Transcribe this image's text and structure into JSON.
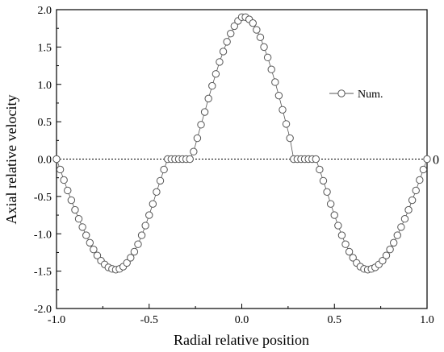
{
  "chart_data": {
    "type": "scatter",
    "xlabel": "Radial relative position",
    "ylabel": "Axial relative velocity",
    "xlim": [
      -1.0,
      1.0
    ],
    "ylim": [
      -2.0,
      2.0
    ],
    "x_ticks": [
      -1.0,
      -0.5,
      0.0,
      0.5,
      1.0
    ],
    "x_tick_labels": [
      "-1.0",
      "-0.5",
      "0.0",
      "0.5",
      "1.0"
    ],
    "y_ticks": [
      -2.0,
      -1.5,
      -1.0,
      -0.5,
      0.0,
      0.5,
      1.0,
      1.5,
      2.0
    ],
    "y_tick_labels": [
      "-2.0",
      "-1.5",
      "-1.0",
      "-0.5",
      "0.0",
      "0.5",
      "1.0",
      "1.5",
      "2.0"
    ],
    "grid": false,
    "legend_position": "right",
    "reference_line": {
      "y": 0,
      "style": "dotted",
      "label": "0"
    },
    "series": [
      {
        "name": "Num.",
        "marker": "open-circle",
        "line": "solid",
        "color": "#555555",
        "points": [
          [
            -1.0,
            0.0
          ],
          [
            -0.98,
            -0.14
          ],
          [
            -0.96,
            -0.28
          ],
          [
            -0.94,
            -0.42
          ],
          [
            -0.92,
            -0.55
          ],
          [
            -0.9,
            -0.68
          ],
          [
            -0.88,
            -0.8
          ],
          [
            -0.86,
            -0.91
          ],
          [
            -0.84,
            -1.02
          ],
          [
            -0.82,
            -1.12
          ],
          [
            -0.8,
            -1.21
          ],
          [
            -0.78,
            -1.29
          ],
          [
            -0.76,
            -1.36
          ],
          [
            -0.74,
            -1.41
          ],
          [
            -0.72,
            -1.45
          ],
          [
            -0.7,
            -1.47
          ],
          [
            -0.68,
            -1.48
          ],
          [
            -0.66,
            -1.47
          ],
          [
            -0.64,
            -1.44
          ],
          [
            -0.62,
            -1.39
          ],
          [
            -0.6,
            -1.32
          ],
          [
            -0.58,
            -1.24
          ],
          [
            -0.56,
            -1.14
          ],
          [
            -0.54,
            -1.02
          ],
          [
            -0.52,
            -0.89
          ],
          [
            -0.5,
            -0.75
          ],
          [
            -0.48,
            -0.6
          ],
          [
            -0.46,
            -0.44
          ],
          [
            -0.44,
            -0.29
          ],
          [
            -0.42,
            -0.14
          ],
          [
            -0.4,
            0.0
          ],
          [
            -0.38,
            0.0
          ],
          [
            -0.36,
            0.0
          ],
          [
            -0.34,
            0.0
          ],
          [
            -0.32,
            0.0
          ],
          [
            -0.3,
            0.0
          ],
          [
            -0.28,
            0.0
          ],
          [
            -0.26,
            0.1
          ],
          [
            -0.24,
            0.28
          ],
          [
            -0.22,
            0.46
          ],
          [
            -0.2,
            0.63
          ],
          [
            -0.18,
            0.81
          ],
          [
            -0.16,
            0.98
          ],
          [
            -0.14,
            1.14
          ],
          [
            -0.12,
            1.3
          ],
          [
            -0.1,
            1.44
          ],
          [
            -0.08,
            1.57
          ],
          [
            -0.06,
            1.68
          ],
          [
            -0.04,
            1.78
          ],
          [
            -0.02,
            1.85
          ],
          [
            0.0,
            1.9
          ],
          [
            0.02,
            1.9
          ],
          [
            0.04,
            1.87
          ],
          [
            0.06,
            1.82
          ],
          [
            0.08,
            1.73
          ],
          [
            0.1,
            1.63
          ],
          [
            0.12,
            1.5
          ],
          [
            0.14,
            1.36
          ],
          [
            0.16,
            1.2
          ],
          [
            0.18,
            1.03
          ],
          [
            0.2,
            0.85
          ],
          [
            0.22,
            0.66
          ],
          [
            0.24,
            0.47
          ],
          [
            0.26,
            0.28
          ],
          [
            0.28,
            0.0
          ],
          [
            0.3,
            0.0
          ],
          [
            0.32,
            0.0
          ],
          [
            0.34,
            0.0
          ],
          [
            0.36,
            0.0
          ],
          [
            0.38,
            0.0
          ],
          [
            0.4,
            0.0
          ],
          [
            0.42,
            -0.14
          ],
          [
            0.44,
            -0.29
          ],
          [
            0.46,
            -0.44
          ],
          [
            0.48,
            -0.6
          ],
          [
            0.5,
            -0.75
          ],
          [
            0.52,
            -0.89
          ],
          [
            0.54,
            -1.02
          ],
          [
            0.56,
            -1.14
          ],
          [
            0.58,
            -1.24
          ],
          [
            0.6,
            -1.32
          ],
          [
            0.62,
            -1.39
          ],
          [
            0.64,
            -1.44
          ],
          [
            0.66,
            -1.47
          ],
          [
            0.68,
            -1.48
          ],
          [
            0.7,
            -1.47
          ],
          [
            0.72,
            -1.45
          ],
          [
            0.74,
            -1.41
          ],
          [
            0.76,
            -1.36
          ],
          [
            0.78,
            -1.29
          ],
          [
            0.8,
            -1.21
          ],
          [
            0.82,
            -1.12
          ],
          [
            0.84,
            -1.02
          ],
          [
            0.86,
            -0.91
          ],
          [
            0.88,
            -0.8
          ],
          [
            0.9,
            -0.68
          ],
          [
            0.92,
            -0.55
          ],
          [
            0.94,
            -0.42
          ],
          [
            0.96,
            -0.28
          ],
          [
            0.98,
            -0.14
          ],
          [
            1.0,
            0.0
          ]
        ]
      }
    ]
  }
}
